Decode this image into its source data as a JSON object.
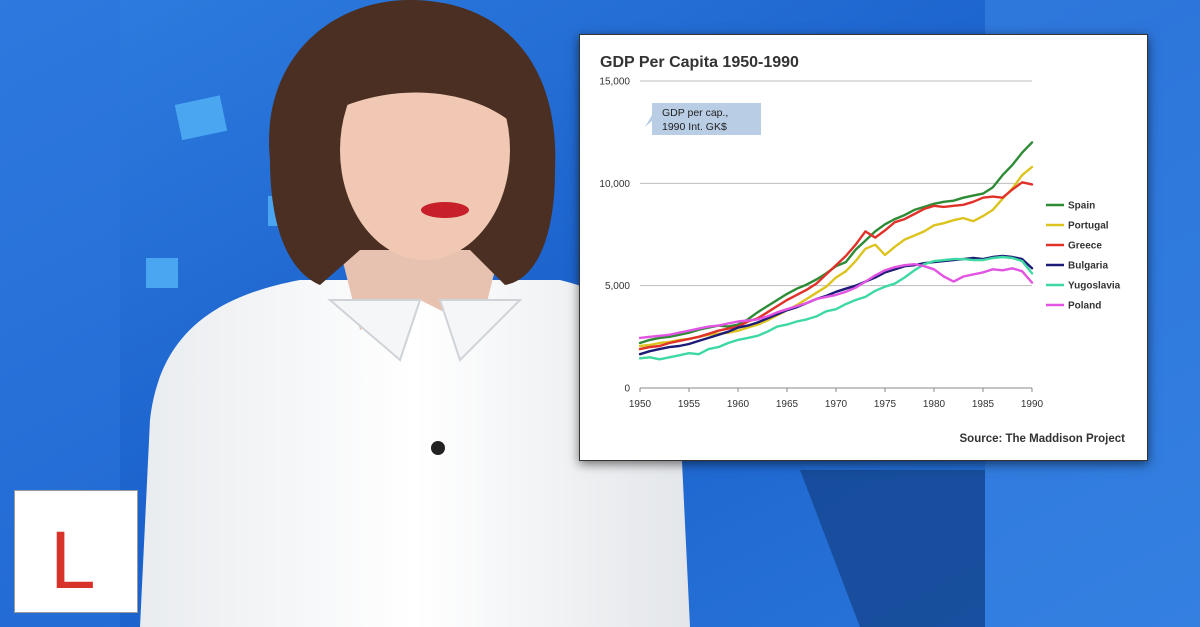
{
  "colors": {
    "background": "#1a63c9",
    "logo_red": "#d8332b",
    "callout_fill": "#b9cde4"
  },
  "logo": {
    "text": "L"
  },
  "chart_data": {
    "type": "line",
    "title": "GDP Per Capita 1950-1990",
    "callout": [
      "GDP per cap.,",
      "1990 Int. GK$"
    ],
    "source": "Source: The Maddison Project",
    "xlim": [
      1950,
      1990
    ],
    "ylim": [
      0,
      15000
    ],
    "x_ticks": [
      1950,
      1955,
      1960,
      1965,
      1970,
      1975,
      1980,
      1985,
      1990
    ],
    "y_ticks": [
      0,
      5000,
      10000,
      15000
    ],
    "y_tick_labels": [
      "0",
      "5,000",
      "10,000",
      "15,000"
    ],
    "grid": "horizontal",
    "legend_position": "right",
    "x": [
      1950,
      1951,
      1952,
      1953,
      1954,
      1955,
      1956,
      1957,
      1958,
      1959,
      1960,
      1961,
      1962,
      1963,
      1964,
      1965,
      1966,
      1967,
      1968,
      1969,
      1970,
      1971,
      1972,
      1973,
      1974,
      1975,
      1976,
      1977,
      1978,
      1979,
      1980,
      1981,
      1982,
      1983,
      1984,
      1985,
      1986,
      1987,
      1988,
      1989,
      1990
    ],
    "series": [
      {
        "name": "Spain",
        "color": "#2e8b35",
        "values": [
          2200,
          2350,
          2450,
          2500,
          2600,
          2700,
          2850,
          2950,
          3050,
          3000,
          3100,
          3350,
          3700,
          4000,
          4300,
          4600,
          4850,
          5050,
          5300,
          5600,
          5950,
          6150,
          6750,
          7200,
          7650,
          8000,
          8250,
          8450,
          8700,
          8850,
          9000,
          9100,
          9150,
          9300,
          9400,
          9500,
          9800,
          10400,
          10900,
          11500,
          12000
        ]
      },
      {
        "name": "Portugal",
        "color": "#dcc31e",
        "values": [
          2050,
          2100,
          2200,
          2250,
          2350,
          2400,
          2500,
          2600,
          2650,
          2700,
          2800,
          2950,
          3100,
          3300,
          3550,
          3800,
          4050,
          4350,
          4650,
          4950,
          5400,
          5700,
          6200,
          6800,
          7000,
          6500,
          6900,
          7250,
          7450,
          7650,
          7950,
          8050,
          8200,
          8300,
          8150,
          8400,
          8700,
          9250,
          9750,
          10400,
          10800
        ]
      },
      {
        "name": "Greece",
        "color": "#e0322a",
        "values": [
          1900,
          2000,
          2050,
          2200,
          2300,
          2400,
          2500,
          2650,
          2800,
          2900,
          3000,
          3250,
          3400,
          3700,
          4000,
          4300,
          4550,
          4800,
          5100,
          5550,
          6000,
          6450,
          7000,
          7650,
          7350,
          7700,
          8100,
          8250,
          8500,
          8750,
          8900,
          8850,
          8900,
          8950,
          9100,
          9300,
          9350,
          9300,
          9700,
          10050,
          9950
        ]
      },
      {
        "name": "Bulgaria",
        "color": "#1c1c78",
        "values": [
          1650,
          1800,
          1900,
          2000,
          2050,
          2150,
          2300,
          2450,
          2600,
          2750,
          2950,
          3050,
          3200,
          3400,
          3600,
          3800,
          3950,
          4150,
          4350,
          4500,
          4700,
          4850,
          5000,
          5200,
          5400,
          5650,
          5800,
          5950,
          6000,
          6100,
          6150,
          6200,
          6250,
          6300,
          6350,
          6300,
          6400,
          6450,
          6400,
          6300,
          5850
        ]
      },
      {
        "name": "Yugoslavia",
        "color": "#3ed9a2",
        "values": [
          1450,
          1500,
          1400,
          1500,
          1600,
          1700,
          1650,
          1900,
          2000,
          2200,
          2350,
          2450,
          2550,
          2750,
          3000,
          3100,
          3250,
          3350,
          3500,
          3750,
          3850,
          4100,
          4300,
          4450,
          4750,
          4950,
          5100,
          5400,
          5750,
          6050,
          6200,
          6250,
          6300,
          6300,
          6250,
          6250,
          6350,
          6400,
          6350,
          6200,
          5600
        ]
      },
      {
        "name": "Poland",
        "color": "#e255e2",
        "values": [
          2450,
          2500,
          2550,
          2600,
          2700,
          2800,
          2900,
          3000,
          3050,
          3150,
          3250,
          3300,
          3350,
          3500,
          3700,
          3850,
          4000,
          4150,
          4350,
          4450,
          4550,
          4700,
          4900,
          5200,
          5500,
          5750,
          5900,
          6000,
          6050,
          5950,
          5800,
          5450,
          5200,
          5450,
          5550,
          5650,
          5800,
          5750,
          5850,
          5700,
          5150
        ]
      }
    ]
  }
}
